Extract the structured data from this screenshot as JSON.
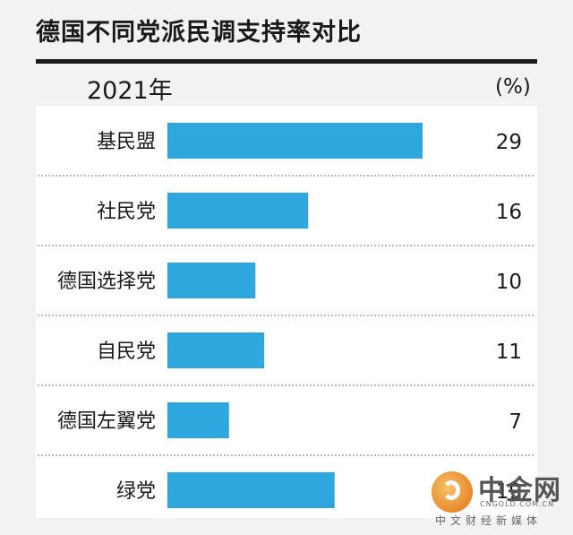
{
  "chart_data": {
    "type": "bar",
    "orientation": "horizontal",
    "title": "德国不同党派民调支持率对比",
    "subtitle": "2021年",
    "unit": "(%)",
    "categories": [
      "基民盟",
      "社民党",
      "德国选择党",
      "自民党",
      "德国左翼党",
      "绿党"
    ],
    "values": [
      29,
      16,
      10,
      11,
      7,
      19
    ],
    "value_labels": [
      "29",
      "16",
      "10",
      "11",
      "7",
      "19"
    ],
    "xlim": [
      0,
      30
    ],
    "grid": false,
    "bar_color": "#2ea7df"
  },
  "watermark": {
    "name": "中金网",
    "url": "CNGOLD.COM.CN",
    "tagline": "中文财经新媒体"
  }
}
